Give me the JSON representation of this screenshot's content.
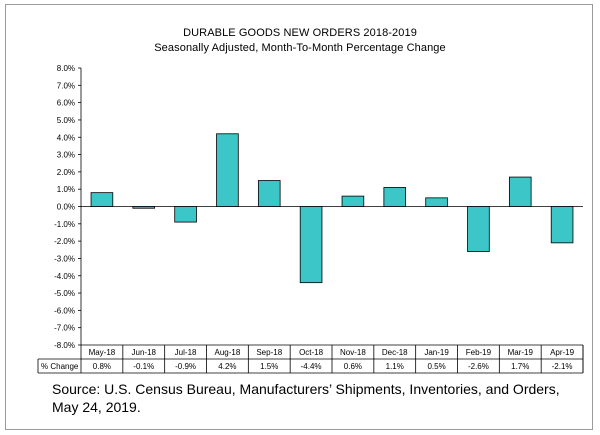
{
  "chart_data": {
    "type": "bar",
    "title": "DURABLE GOODS NEW ORDERS 2018-2019",
    "subtitle": "Seasonally Adjusted,   Month-To-Month  Percentage Change",
    "categories": [
      "May-18",
      "Jun-18",
      "Jul-18",
      "Aug-18",
      "Sep-18",
      "Oct-18",
      "Nov-18",
      "Dec-18",
      "Jan-19",
      "Feb-19",
      "Mar-19",
      "Apr-19"
    ],
    "values": [
      0.8,
      -0.1,
      -0.9,
      4.2,
      1.5,
      -4.4,
      0.6,
      1.1,
      0.5,
      -2.6,
      1.7,
      -2.1
    ],
    "value_labels": [
      "0.8%",
      "-0.1%",
      "-0.9%",
      "4.2%",
      "1.5%",
      "-4.4%",
      "0.6%",
      "1.1%",
      "0.5%",
      "-2.6%",
      "1.7%",
      "-2.1%"
    ],
    "table_row_label": "% Change",
    "y_ticks": [
      "8.0%",
      "7.0%",
      "6.0%",
      "5.0%",
      "4.0%",
      "3.0%",
      "2.0%",
      "1.0%",
      "0.0%",
      "-1.0%",
      "-2.0%",
      "-3.0%",
      "-4.0%",
      "-5.0%",
      "-6.0%",
      "-7.0%",
      "-8.0%"
    ],
    "ylim": [
      -8,
      8
    ],
    "xlabel": "",
    "ylabel": "",
    "bar_color": "#3cc6c8",
    "grid": false
  },
  "source": "Source: U.S. Census Bureau, Manufacturers’ Shipments, Inventories, and Orders, May 24, 2019."
}
